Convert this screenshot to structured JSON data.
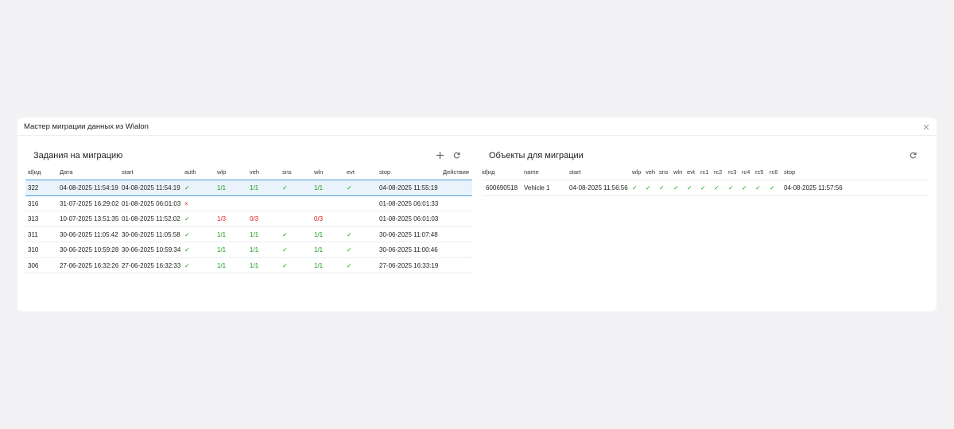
{
  "dialog": {
    "title": "Мастер миграции данных из Wialon"
  },
  "tasks": {
    "title": "Задания на миграцию",
    "columns": [
      "id|ид",
      "Дата",
      "start",
      "auth",
      "wlp",
      "veh",
      "sns",
      "wln",
      "evt",
      "stop",
      "Действия"
    ],
    "rows": [
      [
        "322",
        "04-08-2025 11:54:19",
        "04-08-2025 11:54:19",
        "✓",
        "1/1",
        "1/1",
        "✓",
        "1/1",
        "✓",
        "04-08-2025 11:55:19"
      ],
      [
        "316",
        "31-07-2025 16:29:02",
        "01-08-2025 06:01:03",
        "×",
        null,
        null,
        null,
        null,
        null,
        "01-08-2025 06:01:33"
      ],
      [
        "313",
        "10-07-2025 13:51:35",
        "01-08-2025 11:52:02",
        "✓",
        "1/3",
        "0/3",
        null,
        "0/3",
        null,
        "01-08-2025 06:01:03"
      ],
      [
        "311",
        "30-06-2025 11:05:42",
        "30-06-2025 11:05:58",
        "✓",
        "1/1",
        "1/1",
        "✓",
        "1/1",
        "✓",
        "30-06-2025 11:07:48"
      ],
      [
        "310",
        "30-06-2025 10:59:28",
        "30-06-2025 10:59:34",
        "✓",
        "1/1",
        "1/1",
        "✓",
        "1/1",
        "✓",
        "30-06-2025 11:00:46"
      ],
      [
        "306",
        "27-06-2025 16:32:26",
        "27-06-2025 16:32:33",
        "✓",
        "1/1",
        "1/1",
        "✓",
        "1/1",
        "✓",
        "27-06-2025 16:33:19"
      ]
    ]
  },
  "objects": {
    "title": "Объекты для миграции",
    "columns": [
      "id|ид",
      "name",
      "start",
      "wlp",
      "veh",
      "sns",
      "wln",
      "evt",
      "rc1",
      "rc2",
      "rc3",
      "rc4",
      "rc5",
      "rc6",
      "stop"
    ],
    "rows": [
      [
        "600690518",
        "Vehicle 1",
        "04-08-2025 11:56:56",
        "✓",
        "✓",
        "✓",
        "✓",
        "✓",
        "✓",
        "✓",
        "✓",
        "✓",
        "✓",
        "✓",
        "04-08-2025 11:57:56"
      ]
    ]
  }
}
